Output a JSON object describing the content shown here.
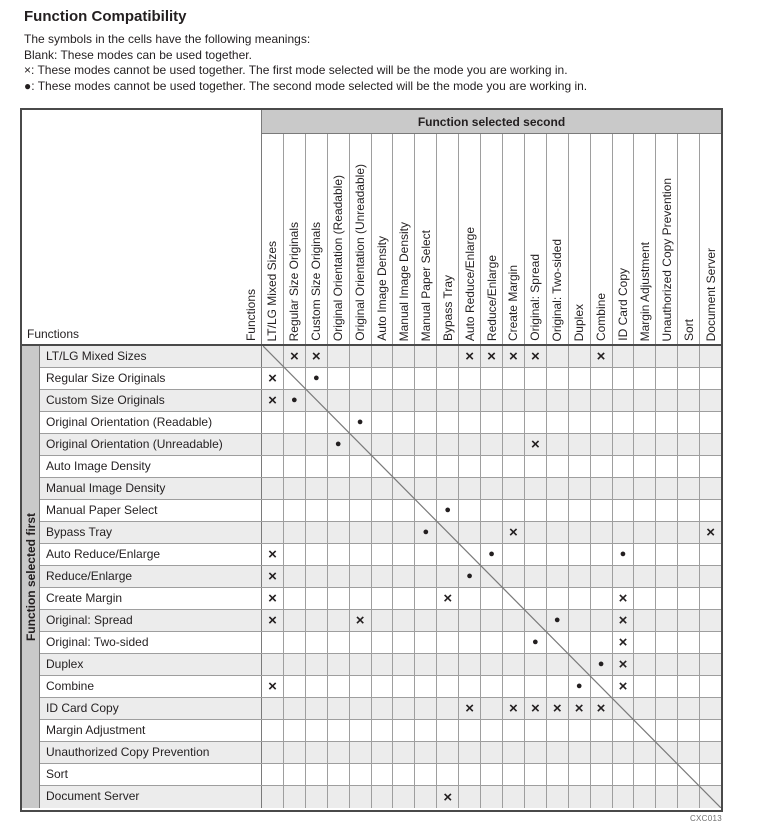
{
  "title": "Function Compatibility",
  "legend": [
    "The symbols in the cells have the following meanings:",
    "Blank: These modes can be used together.",
    "×: These modes cannot be used together. The first mode selected will be the mode you are working in.",
    "●: These modes cannot be used together. The second mode selected will be the mode you are working in."
  ],
  "table": {
    "corner_label": "Functions",
    "corner_vertical_label": "Functions",
    "banner": "Function selected second",
    "row_axis_label": "Function selected first",
    "symbols": {
      "cross": "×",
      "dot": "●"
    },
    "columns": [
      "LT/LG Mixed Sizes",
      "Regular Size Originals",
      "Custom Size Originals",
      "Original Orientation (Readable)",
      "Original Orientation (Unreadable)",
      "Auto Image Density",
      "Manual Image Density",
      "Manual Paper Select",
      "Bypass Tray",
      "Auto Reduce/Enlarge",
      "Reduce/Enlarge",
      "Create Margin",
      "Original: Spread",
      "Original: Two-sided",
      "Duplex",
      "Combine",
      "ID Card Copy",
      "Margin Adjustment",
      "Unauthorized Copy Prevention",
      "Sort",
      "Document Server"
    ],
    "rows": [
      {
        "label": "LT/LG Mixed Sizes",
        "cells": ".xx......xxxx..x....."
      },
      {
        "label": "Regular Size Originals",
        "cells": "x.o.................."
      },
      {
        "label": "Custom Size Originals",
        "cells": "xo..................."
      },
      {
        "label": "Original Orientation (Readable)",
        "cells": "....o................"
      },
      {
        "label": "Original Orientation (Unreadable)",
        "cells": "...o........x........"
      },
      {
        "label": "Auto Image Density",
        "cells": "....................."
      },
      {
        "label": "Manual Image Density",
        "cells": "....................."
      },
      {
        "label": "Manual Paper Select",
        "cells": "........o............"
      },
      {
        "label": "Bypass Tray",
        "cells": ".......o...x........x"
      },
      {
        "label": "Auto Reduce/Enlarge",
        "cells": "x.........o.....o...."
      },
      {
        "label": "Reduce/Enlarge",
        "cells": "x........o..........."
      },
      {
        "label": "Create Margin",
        "cells": "x.......x.......x...."
      },
      {
        "label": "Original: Spread",
        "cells": "x...x........o..x...."
      },
      {
        "label": "Original: Two-sided",
        "cells": "............o...x...."
      },
      {
        "label": "Duplex",
        "cells": "...............ox...."
      },
      {
        "label": "Combine",
        "cells": "x.............o.x...."
      },
      {
        "label": "ID Card Copy",
        "cells": ".........x.xxxxx....."
      },
      {
        "label": "Margin Adjustment",
        "cells": "....................."
      },
      {
        "label": "Unauthorized Copy Prevention",
        "cells": "....................."
      },
      {
        "label": "Sort",
        "cells": "....................."
      },
      {
        "label": "Document Server",
        "cells": "........x............"
      }
    ],
    "figure_code": "CXC013"
  },
  "colors": {
    "banner_bg": "#c9c9c9",
    "alt_row": "#ececec",
    "grid": "#9e9e9e",
    "frame": "#4a4a4a",
    "sep": "#7a7a7a",
    "ink": "#231f20",
    "diag": "#7a7a7a",
    "code": "#6e6e6e"
  }
}
